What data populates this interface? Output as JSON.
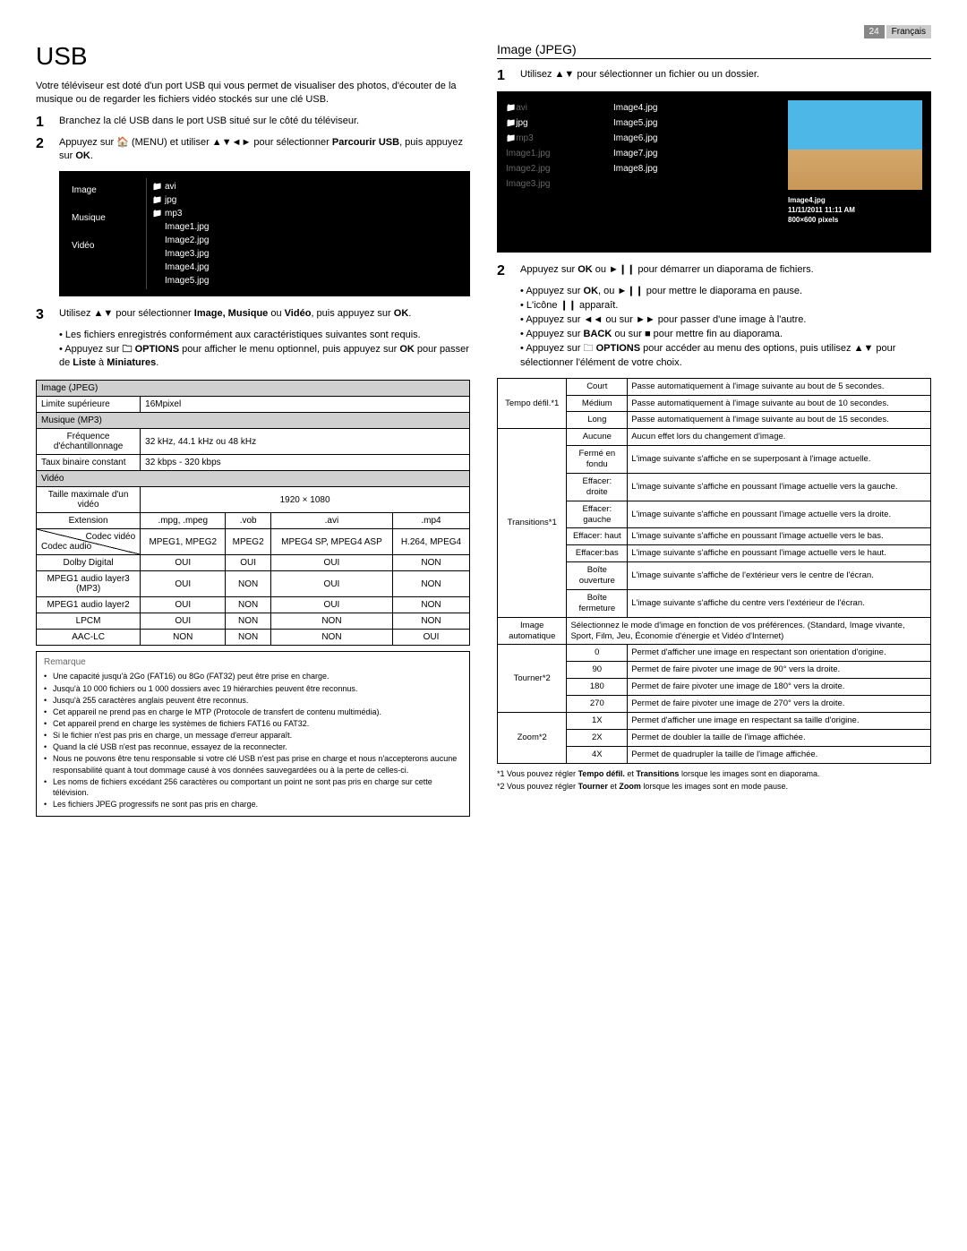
{
  "header": {
    "page_num": "24",
    "lang": "Français"
  },
  "left": {
    "h1": "USB",
    "intro": "Votre téléviseur est doté d'un port USB qui vous permet de visualiser des photos, d'écouter de la musique ou de regarder les fichiers vidéo stockés sur une clé USB.",
    "step1": "Branchez la clé USB dans le port USB situé sur le côté du téléviseur.",
    "step2_a": "Appuyez sur ",
    "step2_home": "🏠",
    "step2_b": " (MENU) et utiliser ▲▼◄► pour sélectionner ",
    "step2_c": "Parcourir USB",
    "step2_d": ", puis appuyez sur ",
    "step2_e": "OK",
    "step2_f": ".",
    "menu": {
      "left": [
        "Image",
        "Musique",
        "Vidéo"
      ],
      "right": [
        "avi",
        "jpg",
        "mp3",
        "Image1.jpg",
        "Image2.jpg",
        "Image3.jpg",
        "Image4.jpg",
        "Image5.jpg"
      ]
    },
    "step3_a": "Utilisez ▲▼ pour sélectionner ",
    "step3_b": "Image, Musique",
    "step3_c": " ou ",
    "step3_d": "Vidéo",
    "step3_e": ", puis appuyez sur ",
    "step3_f": "OK",
    "step3_g": ".",
    "step3_sub1": "Les fichiers enregistrés conformément aux caractéristiques suivantes sont requis.",
    "step3_sub2_a": "Appuyez sur ",
    "step3_sub2_opt": "🗀 OPTIONS",
    "step3_sub2_b": " pour afficher le menu optionnel, puis appuyez sur ",
    "step3_sub2_c": "OK",
    "step3_sub2_d": " pour passer de ",
    "step3_sub2_e": "Liste",
    "step3_sub2_f": " à ",
    "step3_sub2_g": "Miniatures",
    "step3_sub2_h": ".",
    "specs": {
      "jpeg_hdr": "Image (JPEG)",
      "jpeg_r1_l": "Limite supérieure",
      "jpeg_r1_v": "16Mpixel",
      "mp3_hdr": "Musique (MP3)",
      "mp3_r1_l": "Fréquence d'échantillonnage",
      "mp3_r1_v": "32 kHz, 44.1 kHz ou 48 kHz",
      "mp3_r2_l": "Taux binaire constant",
      "mp3_r2_v": "32 kbps - 320 kbps",
      "vid_hdr": "Vidéo",
      "vid_size_l": "Taille maximale d'un vidéo",
      "vid_size_v": "1920 × 1080",
      "ext_l": "Extension",
      "exts": [
        ".mpg, .mpeg",
        ".vob",
        ".avi",
        ".mp4"
      ],
      "codec_v_l": "Codec vidéo",
      "codec_a_l": "Codec audio",
      "codecs": [
        "MPEG1, MPEG2",
        "MPEG2",
        "MPEG4 SP, MPEG4 ASP",
        "H.264, MPEG4"
      ],
      "audio_rows": [
        {
          "l": "Dolby Digital",
          "v": [
            "OUI",
            "OUI",
            "OUI",
            "NON"
          ]
        },
        {
          "l": "MPEG1 audio layer3 (MP3)",
          "v": [
            "OUI",
            "NON",
            "OUI",
            "NON"
          ]
        },
        {
          "l": "MPEG1 audio layer2",
          "v": [
            "OUI",
            "NON",
            "OUI",
            "NON"
          ]
        },
        {
          "l": "LPCM",
          "v": [
            "OUI",
            "NON",
            "NON",
            "NON"
          ]
        },
        {
          "l": "AAC-LC",
          "v": [
            "NON",
            "NON",
            "NON",
            "OUI"
          ]
        }
      ]
    },
    "remarque_title": "Remarque",
    "remarques": [
      "Une capacité jusqu'à 2Go (FAT16) ou 8Go (FAT32) peut être prise en charge.",
      "Jusqu'à 10 000 fichiers ou 1 000 dossiers avec 19 hiérarchies peuvent être reconnus.",
      "Jusqu'à 255 caractères anglais peuvent être reconnus.",
      "Cet appareil ne prend pas en charge le MTP (Protocole de transfert de contenu multimédia).",
      "Cet appareil prend en charge les systèmes de fichiers FAT16 ou FAT32.",
      "Si le fichier n'est pas pris en charge, un message d'erreur apparaît.",
      "Quand la clé USB n'est pas reconnue, essayez de la reconnecter.",
      "Nous ne pouvons être tenu responsable si votre clé USB n'est pas prise en charge et nous n'accepterons aucune responsabilité quant à tout dommage causé à vos données sauvegardées ou à la perte de celles-ci.",
      "Les noms de fichiers excédant 256 caractères ou comportant un point ne sont pas pris en charge sur cette télévision.",
      "Les fichiers JPEG progressifs ne sont pas pris en charge."
    ]
  },
  "right": {
    "h2": "Image (JPEG)",
    "step1": "Utilisez ▲▼ pour sélectionner un fichier ou un dossier.",
    "browser": {
      "col1": [
        {
          "t": "avi",
          "dim": true,
          "f": true
        },
        {
          "t": "jpg",
          "dim": false,
          "f": true
        },
        {
          "t": "mp3",
          "dim": true,
          "f": true
        },
        {
          "t": "Image1.jpg",
          "dim": true,
          "f": false
        },
        {
          "t": "Image2.jpg",
          "dim": true,
          "f": false
        },
        {
          "t": "Image3.jpg",
          "dim": true,
          "f": false
        }
      ],
      "col2": [
        "Image4.jpg",
        "Image5.jpg",
        "Image6.jpg",
        "Image7.jpg",
        "Image8.jpg"
      ],
      "info_name": "Image4.jpg",
      "info_date": "11/11/2011 11:11 AM",
      "info_size": "800×600 pixels"
    },
    "step2_a": "Appuyez sur ",
    "step2_b": "OK",
    "step2_c": " ou ►❙❙ pour démarrer un diaporama de fichiers.",
    "s2_subs": [
      "Appuyez sur <b>OK</b>, ou ►❙❙ pour mettre le diaporama en pause.",
      "L'icône ❙❙ apparaît.",
      "Appuyez sur ◄◄ ou sur ►► pour passer d'une image à l'autre.",
      "Appuyez sur <b>BACK</b> ou sur ■ pour mettre fin au diaporama.",
      "Appuyez sur 🗀 <b>OPTIONS</b> pour accéder au menu des options, puis utilisez ▲▼ pour sélectionner l'élément de votre choix."
    ],
    "opts": {
      "tempo_l": "Tempo défil.*1",
      "tempo": [
        [
          "Court",
          "Passe automatiquement à l'image suivante au bout de 5 secondes."
        ],
        [
          "Médium",
          "Passe automatiquement à l'image suivante au bout de 10 secondes."
        ],
        [
          "Long",
          "Passe automatiquement à l'image suivante au bout de 15 secondes."
        ]
      ],
      "trans_l": "Transitions*1",
      "trans": [
        [
          "Aucune",
          "Aucun effet lors du changement d'image."
        ],
        [
          "Fermé en fondu",
          "L'image suivante s'affiche en se superposant à l'image actuelle."
        ],
        [
          "Effacer: droite",
          "L'image suivante s'affiche en poussant l'image actuelle vers la gauche."
        ],
        [
          "Effacer: gauche",
          "L'image suivante s'affiche en poussant l'image actuelle vers la droite."
        ],
        [
          "Effacer: haut",
          "L'image suivante s'affiche en poussant l'image actuelle vers le bas."
        ],
        [
          "Effacer:bas",
          "L'image suivante s'affiche en poussant l'image actuelle vers le haut."
        ],
        [
          "Boîte ouverture",
          "L'image suivante s'affiche de l'extérieur vers le centre de l'écran."
        ],
        [
          "Boîte fermeture",
          "L'image suivante s'affiche du centre vers l'extérieur de l'écran."
        ]
      ],
      "img_l": "Image automatique",
      "img_v": "Sélectionnez le mode d'image en fonction de vos préférences. (Standard, Image vivante, Sport, Film, Jeu, Économie d'énergie et Vidéo d'Internet)",
      "rot_l": "Tourner*2",
      "rot": [
        [
          "0",
          "Permet d'afficher une image en respectant son orientation d'origine."
        ],
        [
          "90",
          "Permet de faire pivoter une image de 90° vers la droite."
        ],
        [
          "180",
          "Permet de faire pivoter une image de 180° vers la droite."
        ],
        [
          "270",
          "Permet de faire pivoter une image de 270° vers la droite."
        ]
      ],
      "zoom_l": "Zoom*2",
      "zoom": [
        [
          "1X",
          "Permet d'afficher une image en respectant sa taille d'origine."
        ],
        [
          "2X",
          "Permet de doubler la taille de l'image affichée."
        ],
        [
          "4X",
          "Permet de quadrupler la taille de l'image affichée."
        ]
      ]
    },
    "fn1": "*1  Vous pouvez régler Tempo défil. et Transitions lorsque les images sont en diaporama.",
    "fn2": "*2  Vous pouvez régler Tourner et Zoom lorsque les images sont en mode pause."
  }
}
